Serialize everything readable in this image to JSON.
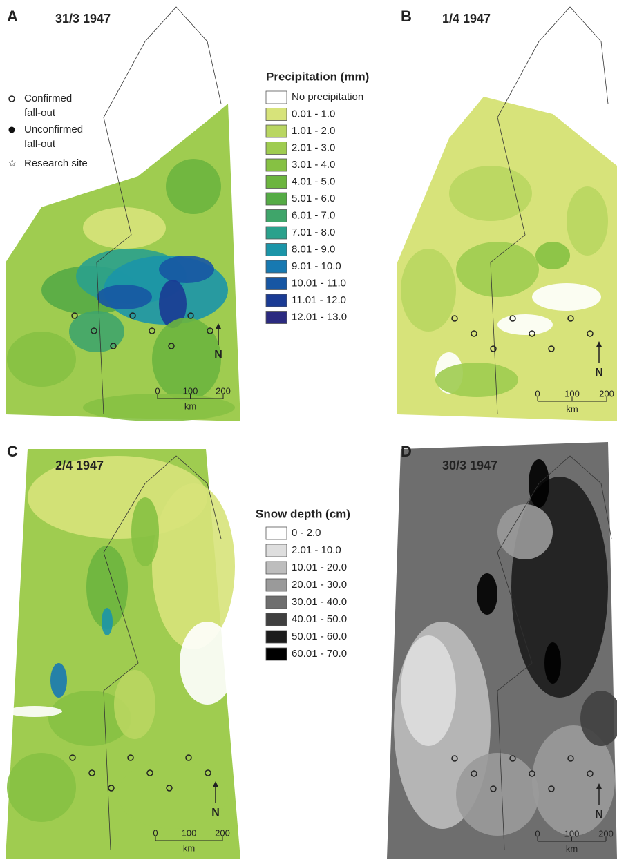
{
  "panels": [
    {
      "letter": "A",
      "date": "31/3 1947",
      "scale": [
        0,
        100,
        200
      ],
      "unit": "km",
      "north": "N"
    },
    {
      "letter": "B",
      "date": "1/4 1947",
      "scale": [
        0,
        100,
        200
      ],
      "unit": "km",
      "north": "N"
    },
    {
      "letter": "C",
      "date": "2/4 1947",
      "scale": [
        0,
        100,
        200
      ],
      "unit": "km",
      "north": "N"
    },
    {
      "letter": "D",
      "date": "30/3 1947",
      "scale": [
        0,
        100,
        200
      ],
      "unit": "km",
      "north": "N"
    }
  ],
  "point_legend": [
    {
      "lines": [
        "Confirmed",
        "fall-out"
      ],
      "symbol": "circle"
    },
    {
      "lines": [
        "Unconfirmed",
        "fall-out"
      ],
      "symbol": "dot"
    },
    {
      "lines": [
        "Research site"
      ],
      "symbol": "star"
    }
  ],
  "precipitation_legend": {
    "title": "Precipitation (mm)",
    "items": [
      {
        "label": "No precipitation",
        "color": "#ffffff"
      },
      {
        "label": "0.01 - 1.0",
        "color": "#d7e37a"
      },
      {
        "label": "1.01 - 2.0",
        "color": "#b9d661"
      },
      {
        "label": "2.01 - 3.0",
        "color": "#9fcc50"
      },
      {
        "label": "3.01 - 4.0",
        "color": "#86c143"
      },
      {
        "label": "4.01 - 5.0",
        "color": "#6cb53e"
      },
      {
        "label": "5.01 - 6.0",
        "color": "#55ab45"
      },
      {
        "label": "6.01 - 7.0",
        "color": "#3fa56a"
      },
      {
        "label": "7.01 - 8.0",
        "color": "#2aa18c"
      },
      {
        "label": "8.01 - 9.0",
        "color": "#1b95a8"
      },
      {
        "label": "9.01 - 10.0",
        "color": "#1779b1"
      },
      {
        "label": "10.01 - 11.0",
        "color": "#1756a3"
      },
      {
        "label": "11.01 - 12.0",
        "color": "#1a3b94"
      },
      {
        "label": "12.01 - 13.0",
        "color": "#2b2a80"
      }
    ]
  },
  "snow_legend": {
    "title": "Snow depth (cm)",
    "items": [
      {
        "label": "0 - 2.0",
        "color": "#ffffff"
      },
      {
        "label": "2.01 - 10.0",
        "color": "#dedede"
      },
      {
        "label": "10.01 - 20.0",
        "color": "#bdbdbd"
      },
      {
        "label": "20.01 - 30.0",
        "color": "#9a9a9a"
      },
      {
        "label": "30.01 - 40.0",
        "color": "#6e6e6e"
      },
      {
        "label": "40.01 - 50.0",
        "color": "#404040"
      },
      {
        "label": "50.01 - 60.0",
        "color": "#1c1c1c"
      },
      {
        "label": "60.01 - 70.0",
        "color": "#000000"
      }
    ]
  }
}
